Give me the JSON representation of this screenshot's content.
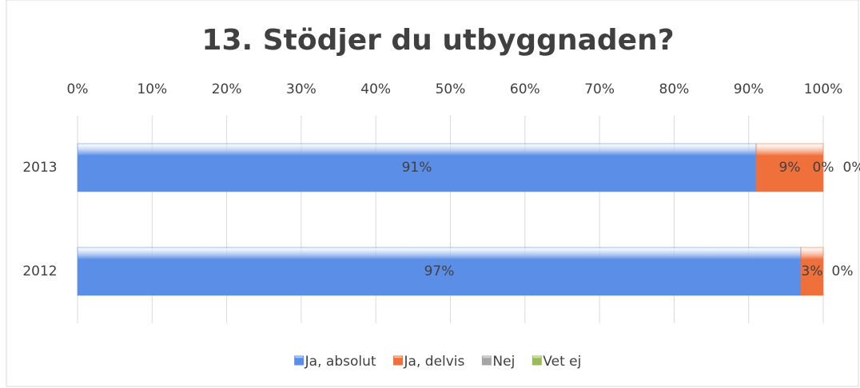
{
  "chart_data": {
    "type": "stacked_bar_horizontal",
    "title": "13. Stödjer du utbyggnaden?",
    "categories": [
      "2013",
      "2012"
    ],
    "series": [
      {
        "name": "Ja, absolut",
        "color": "#5b8ee6",
        "values": [
          91,
          97
        ],
        "value_labels": [
          "91%",
          "97%"
        ]
      },
      {
        "name": "Ja, delvis",
        "color": "#f0703c",
        "values": [
          9,
          3
        ],
        "value_labels": [
          "9%",
          "3%"
        ]
      },
      {
        "name": "Nej",
        "color": "#a5a5a5",
        "values": [
          0,
          0
        ],
        "value_labels": [
          "0%",
          "0%"
        ]
      },
      {
        "name": "Vet ej",
        "color": "#9bbb59",
        "values": [
          0,
          0
        ],
        "value_labels": [
          "0%",
          "0%"
        ]
      }
    ],
    "xlim": [
      0,
      100
    ],
    "xticks": [
      {
        "value": 0,
        "label": "0%"
      },
      {
        "value": 10,
        "label": "10%"
      },
      {
        "value": 20,
        "label": "20%"
      },
      {
        "value": 30,
        "label": "30%"
      },
      {
        "value": 40,
        "label": "40%"
      },
      {
        "value": 50,
        "label": "50%"
      },
      {
        "value": 60,
        "label": "60%"
      },
      {
        "value": 70,
        "label": "70%"
      },
      {
        "value": 80,
        "label": "80%"
      },
      {
        "value": 90,
        "label": "90%"
      },
      {
        "value": 100,
        "label": "100%"
      }
    ],
    "grid": true,
    "legend": "bottom"
  }
}
